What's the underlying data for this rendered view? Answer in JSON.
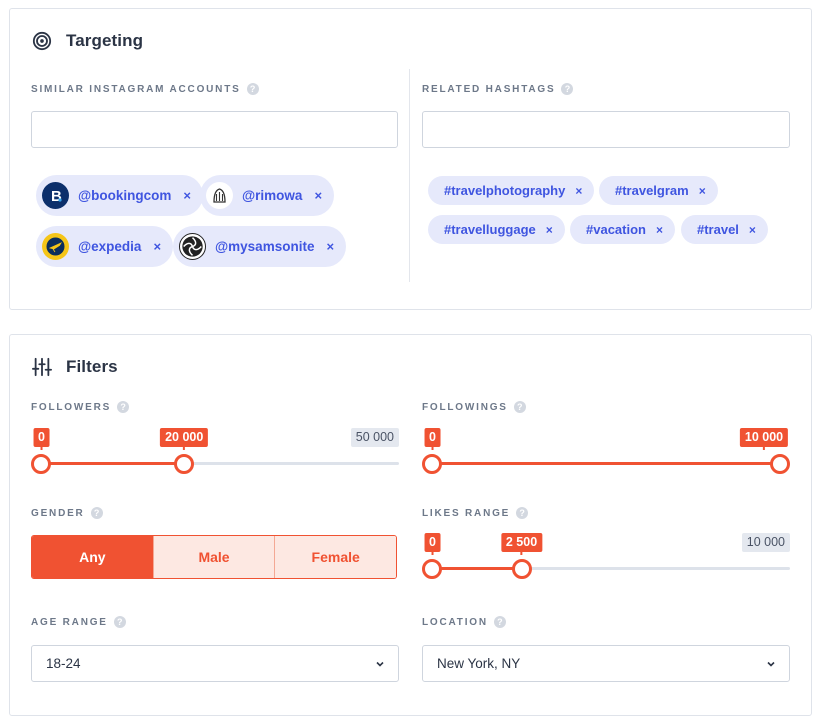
{
  "targeting": {
    "title": "Targeting",
    "similar_accounts": {
      "label": "SIMILAR INSTAGRAM ACCOUNTS",
      "input_value": "",
      "chips": [
        {
          "text": "@bookingcom",
          "remove": "×",
          "icon": "booking-logo-icon",
          "avatar_color": "#0c2f6b"
        },
        {
          "text": "@rimowa",
          "remove": "×",
          "icon": "rimowa-logo-icon",
          "avatar_color": "#ffffff"
        },
        {
          "text": "@expedia",
          "remove": "×",
          "icon": "expedia-logo-icon",
          "avatar_color": "#f5c518"
        },
        {
          "text": "@mysamsonite",
          "remove": "×",
          "icon": "samsonite-logo-icon",
          "avatar_color": "#ffffff"
        }
      ]
    },
    "related_hashtags": {
      "label": "RELATED HASHTAGS",
      "input_value": "",
      "tags": [
        {
          "text": "#travelphotography",
          "remove": "×"
        },
        {
          "text": "#travelgram",
          "remove": "×"
        },
        {
          "text": "#travelluggage",
          "remove": "×"
        },
        {
          "text": "#vacation",
          "remove": "×"
        },
        {
          "text": "#travel",
          "remove": "×"
        }
      ]
    }
  },
  "filters": {
    "title": "Filters",
    "followers": {
      "label": "FOLLOWERS",
      "min_label": "0",
      "value_label": "20 000",
      "max_label": "50 000",
      "min": 0,
      "value": 20000,
      "max": 50000
    },
    "followings": {
      "label": "FOLLOWINGS",
      "min_label": "0",
      "value_label": "10 000",
      "min": 0,
      "value": 10000,
      "max": 10000
    },
    "gender": {
      "label": "GENDER",
      "options": [
        "Any",
        "Male",
        "Female"
      ],
      "selected": "Any"
    },
    "likes_range": {
      "label": "LIKES RANGE",
      "min_label": "0",
      "value_label": "2 500",
      "max_label": "10 000",
      "min": 0,
      "value": 2500,
      "max": 10000
    },
    "age_range": {
      "label": "AGE RANGE",
      "value": "18-24"
    },
    "location": {
      "label": "LOCATION",
      "value": "New York, NY"
    }
  },
  "help_glyph": "?",
  "accent_color": "#f05232",
  "chip_color": "#3f55e0"
}
